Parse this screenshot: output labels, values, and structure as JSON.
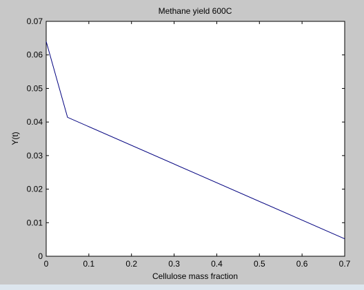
{
  "chart_data": {
    "type": "line",
    "title": "Methane yield 600C",
    "xlabel": "Cellulose mass fraction",
    "ylabel": "Y(t)",
    "xlim": [
      0,
      0.7
    ],
    "ylim": [
      0,
      0.07
    ],
    "xticks": [
      "0",
      "0.1",
      "0.2",
      "0.3",
      "0.4",
      "0.5",
      "0.6",
      "0.7"
    ],
    "yticks": [
      "0",
      "0.01",
      "0.02",
      "0.03",
      "0.04",
      "0.05",
      "0.06",
      "0.07"
    ],
    "grid": false,
    "series": [
      {
        "x": [
          0,
          0.05,
          0.7
        ],
        "y": [
          0.064,
          0.0414,
          0.0052
        ],
        "color": "#00007f"
      }
    ]
  },
  "colors": {
    "figure_background": "#c8c8c8",
    "axes_background": "#ffffff",
    "line": "#00007f"
  }
}
